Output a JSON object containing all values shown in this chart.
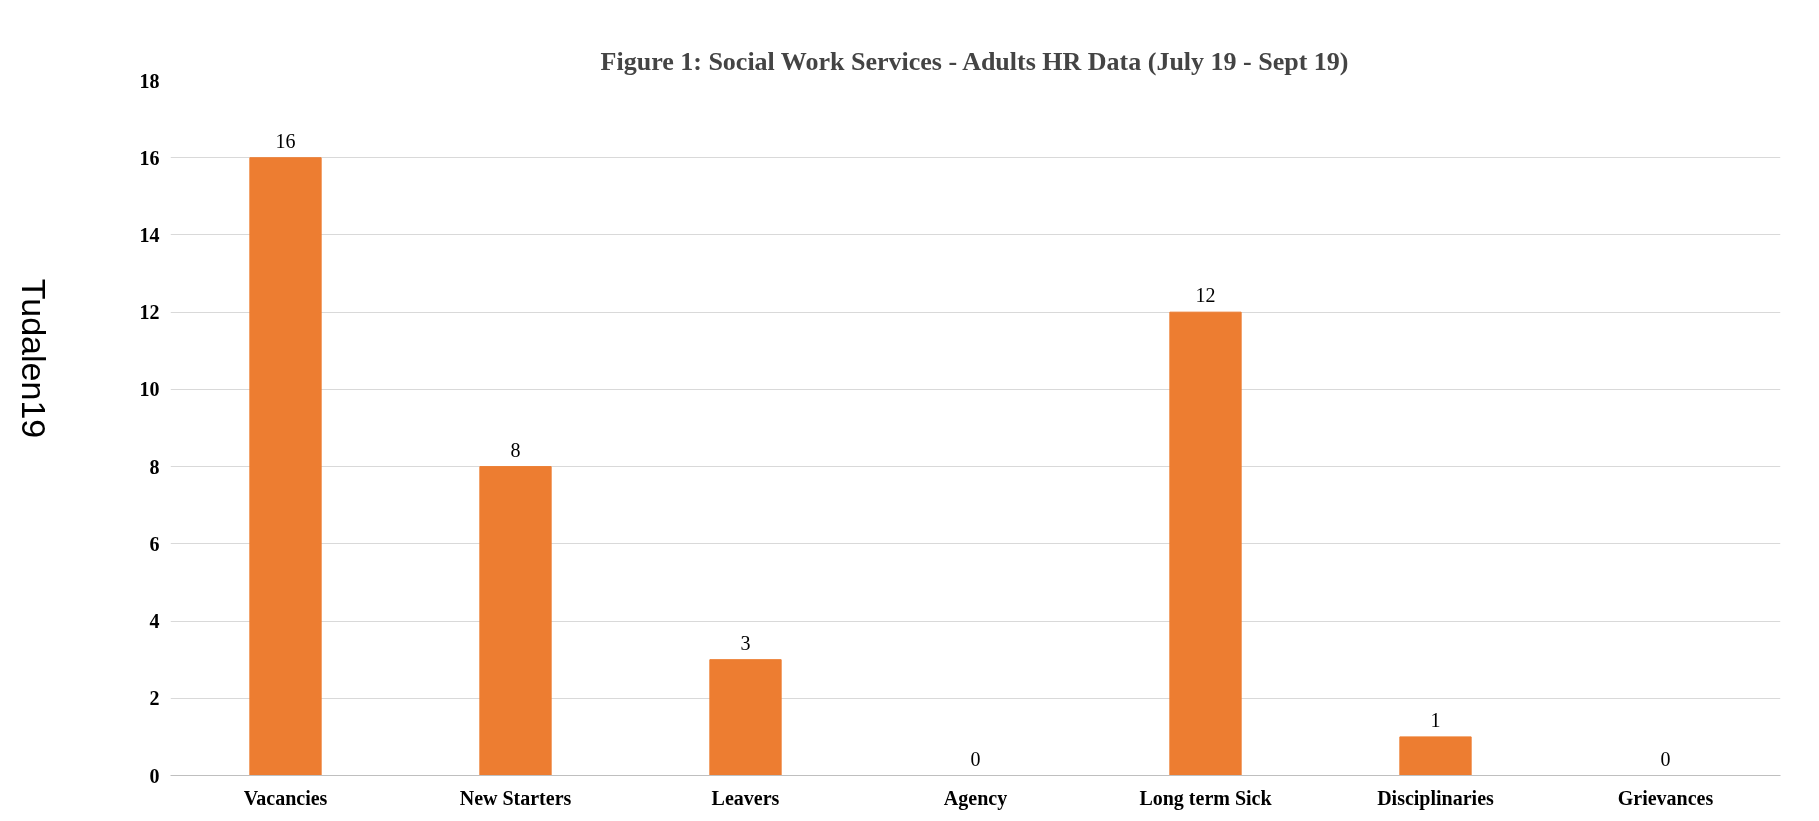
{
  "chart_data": {
    "type": "bar",
    "title": "Figure 1: Social Work Services - Adults HR Data (July 19 - Sept 19)",
    "categories": [
      "Vacancies",
      "New Starters",
      "Leavers",
      "Agency",
      "Long term Sick",
      "Disciplinaries",
      "Grievances"
    ],
    "values": [
      16,
      8,
      3,
      0,
      12,
      1,
      0
    ],
    "color": "#ed7d31",
    "ylim": [
      0,
      18
    ],
    "yticks": [
      0,
      2,
      4,
      6,
      8,
      10,
      12,
      14,
      16,
      18
    ],
    "grid": "y",
    "data_labels": true,
    "annotations": [
      "Tudalen19"
    ]
  }
}
